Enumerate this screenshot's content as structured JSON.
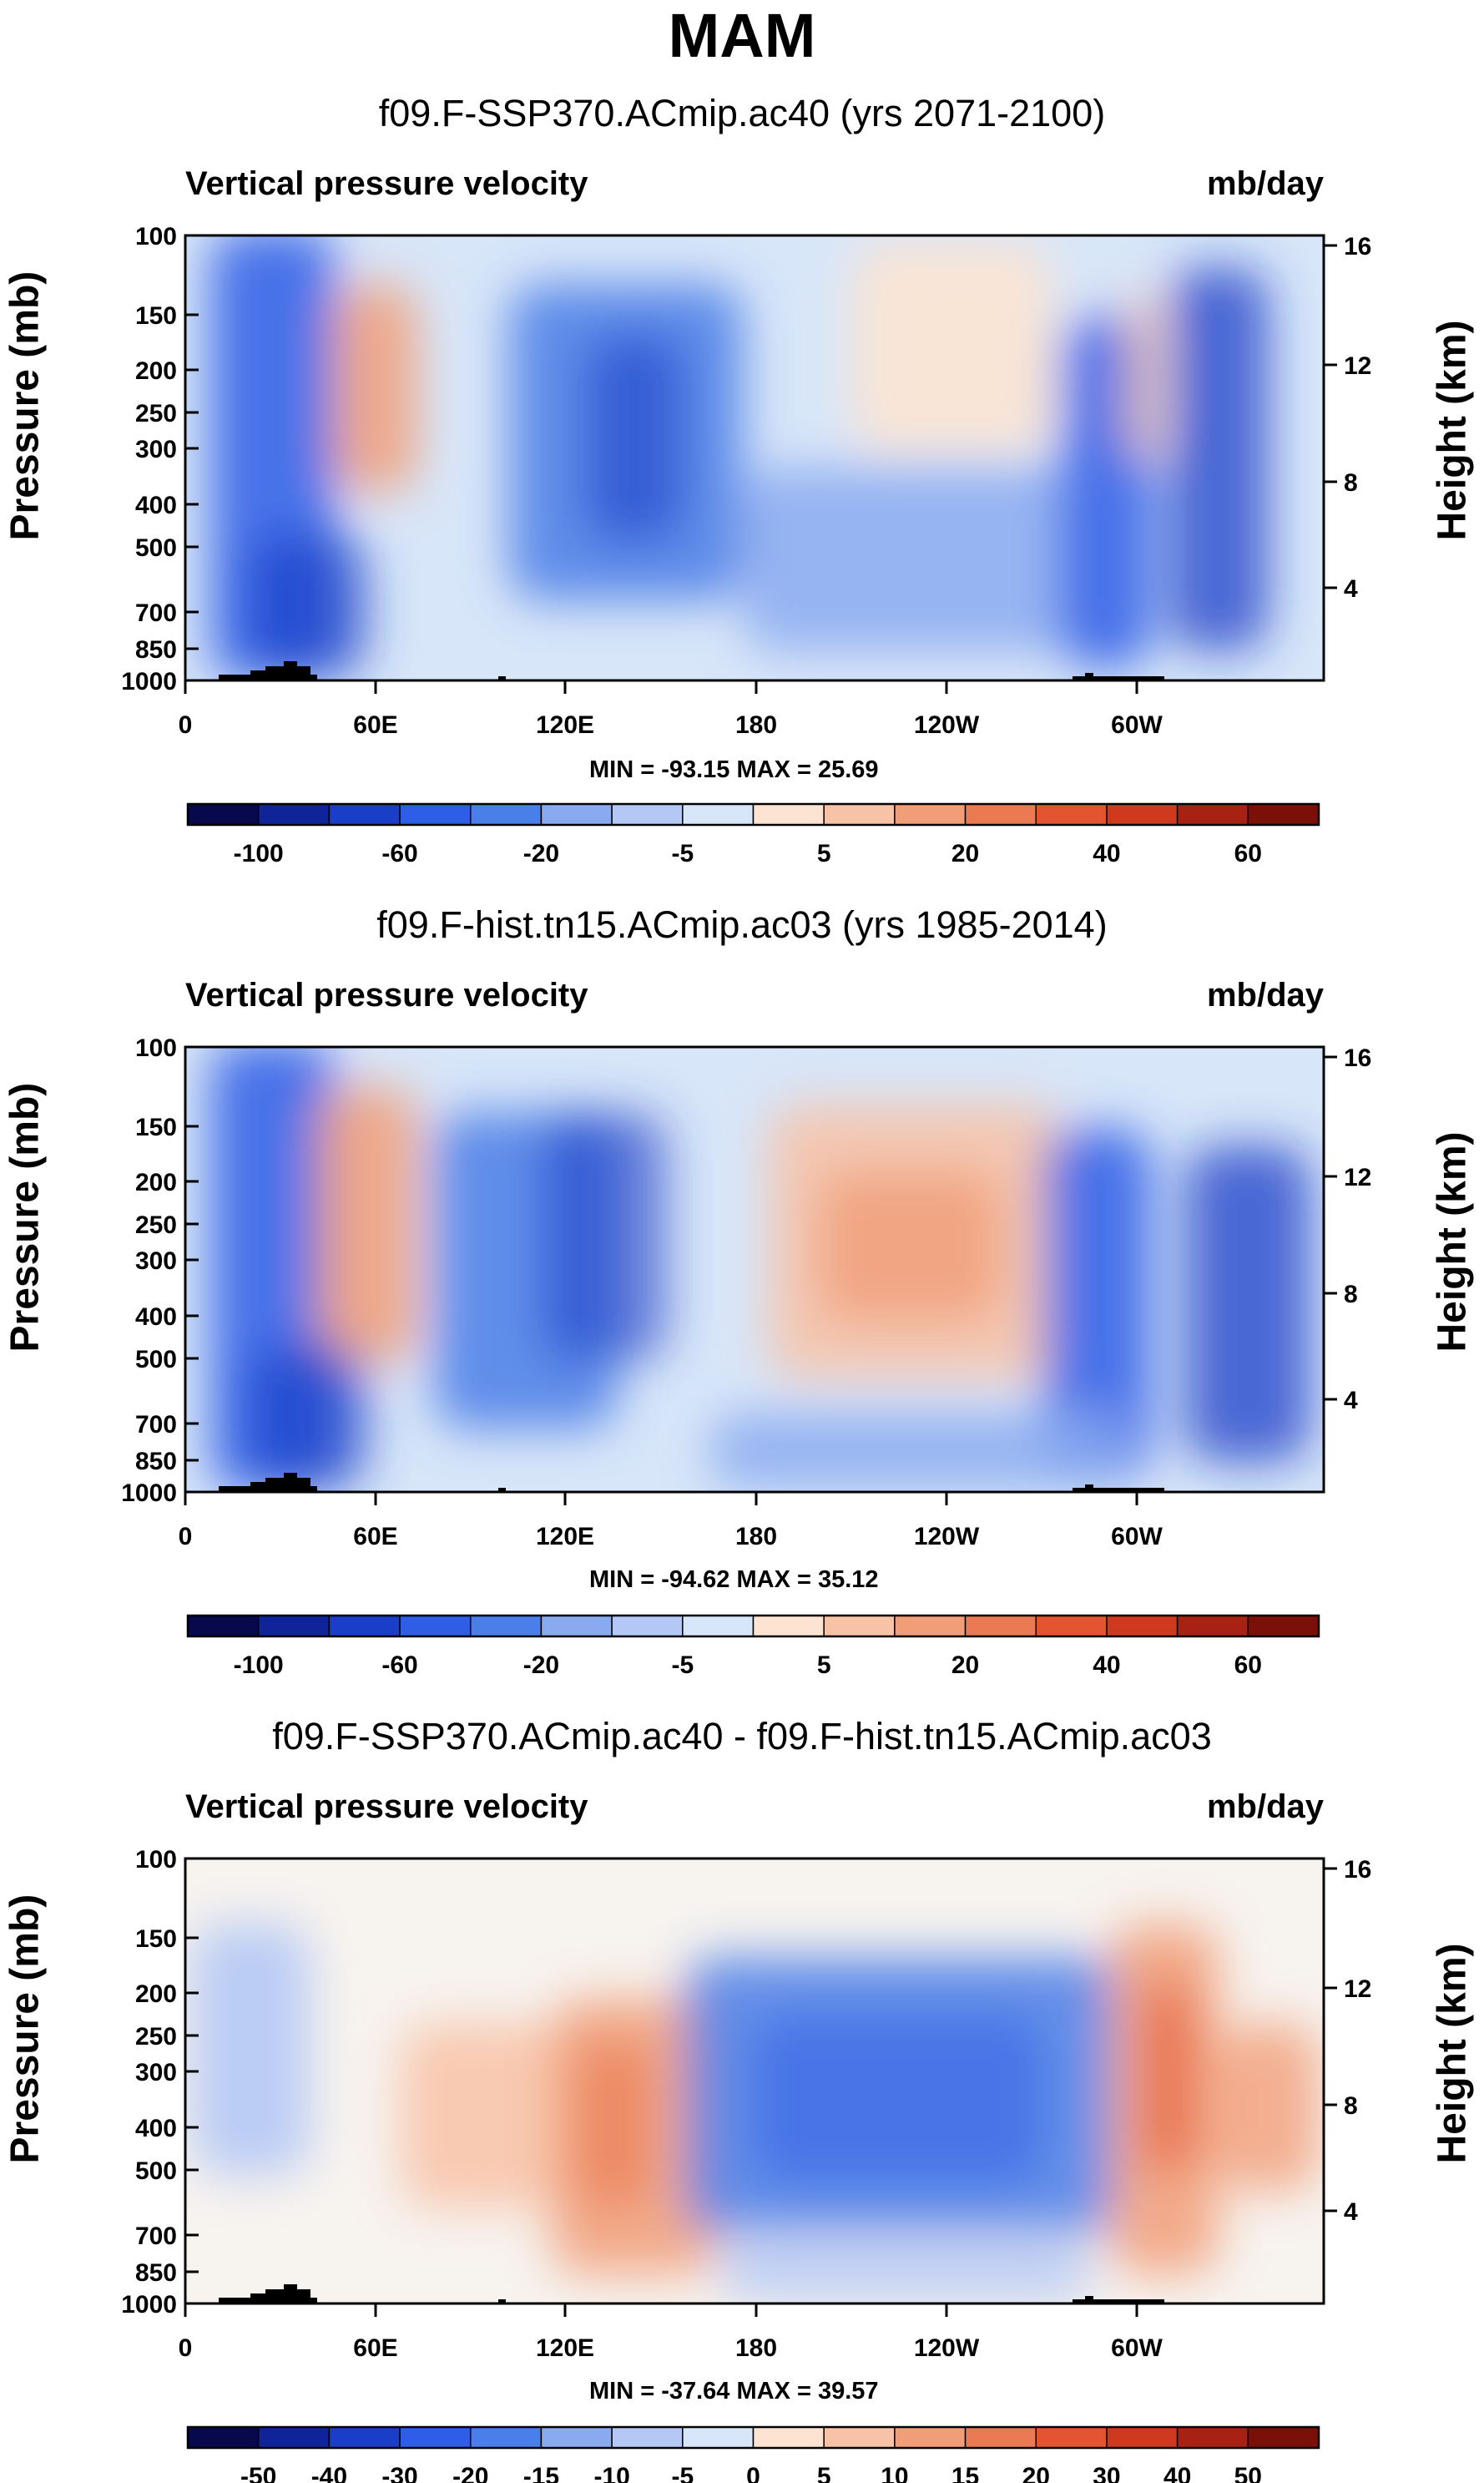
{
  "page_title": "MAM",
  "chart_data": [
    {
      "type": "heatmap",
      "title": "f09.F-SSP370.ACmip.ac40 (yrs 2071-2100)",
      "variable": "Vertical pressure velocity",
      "units": "mb/day",
      "ylabel": "Pressure (mb)",
      "ylabel_right": "Height (km)",
      "x_ticks": [
        "0",
        "60E",
        "120E",
        "180",
        "120W",
        "60W"
      ],
      "y_ticks": [
        "100",
        "150",
        "200",
        "250",
        "300",
        "400",
        "500",
        "700",
        "850",
        "1000"
      ],
      "y_ticks_right": [
        "16",
        "12",
        "8",
        "4"
      ],
      "min_max": "MIN = -93.15  MAX = 25.69",
      "colorbar_labels": [
        "-100",
        "-60",
        "-20",
        "-5",
        "5",
        "20",
        "40",
        "60"
      ],
      "colorbar_colors": [
        "#08084d",
        "#10249a",
        "#1a3ec7",
        "#2f5ee6",
        "#4a7ee8",
        "#8aaaf0",
        "#b4c8f5",
        "#d8e6f9",
        "#fde4d2",
        "#f8c2a6",
        "#f19e78",
        "#ea7a52",
        "#e25530",
        "#cf3a1e",
        "#a82214",
        "#7a1008"
      ]
    },
    {
      "type": "heatmap",
      "title": "f09.F-hist.tn15.ACmip.ac03 (yrs 1985-2014)",
      "variable": "Vertical pressure velocity",
      "units": "mb/day",
      "ylabel": "Pressure (mb)",
      "ylabel_right": "Height (km)",
      "x_ticks": [
        "0",
        "60E",
        "120E",
        "180",
        "120W",
        "60W"
      ],
      "y_ticks": [
        "100",
        "150",
        "200",
        "250",
        "300",
        "400",
        "500",
        "700",
        "850",
        "1000"
      ],
      "y_ticks_right": [
        "16",
        "12",
        "8",
        "4"
      ],
      "min_max": "MIN = -94.62  MAX = 35.12",
      "colorbar_labels": [
        "-100",
        "-60",
        "-20",
        "-5",
        "5",
        "20",
        "40",
        "60"
      ],
      "colorbar_colors": [
        "#08084d",
        "#10249a",
        "#1a3ec7",
        "#2f5ee6",
        "#4a7ee8",
        "#8aaaf0",
        "#b4c8f5",
        "#d8e6f9",
        "#fde4d2",
        "#f8c2a6",
        "#f19e78",
        "#ea7a52",
        "#e25530",
        "#cf3a1e",
        "#a82214",
        "#7a1008"
      ]
    },
    {
      "type": "heatmap",
      "title": "f09.F-SSP370.ACmip.ac40 - f09.F-hist.tn15.ACmip.ac03",
      "variable": "Vertical pressure velocity",
      "units": "mb/day",
      "ylabel": "Pressure (mb)",
      "ylabel_right": "Height (km)",
      "x_ticks": [
        "0",
        "60E",
        "120E",
        "180",
        "120W",
        "60W"
      ],
      "y_ticks": [
        "100",
        "150",
        "200",
        "250",
        "300",
        "400",
        "500",
        "700",
        "850",
        "1000"
      ],
      "y_ticks_right": [
        "16",
        "12",
        "8",
        "4"
      ],
      "min_max": "MIN = -37.64  MAX = 39.57",
      "colorbar_labels": [
        "-50",
        "-40",
        "-30",
        "-20",
        "-15",
        "-10",
        "-5",
        "0",
        "5",
        "10",
        "15",
        "20",
        "30",
        "40",
        "50"
      ],
      "colorbar_colors": [
        "#08084d",
        "#10249a",
        "#1a3ec7",
        "#2f5ee6",
        "#4a7ee8",
        "#8aaaf0",
        "#b4c8f5",
        "#d8e6f9",
        "#fde4d2",
        "#f8c2a6",
        "#f19e78",
        "#ea7a52",
        "#e25530",
        "#cf3a1e",
        "#a82214",
        "#7a1008"
      ]
    }
  ]
}
